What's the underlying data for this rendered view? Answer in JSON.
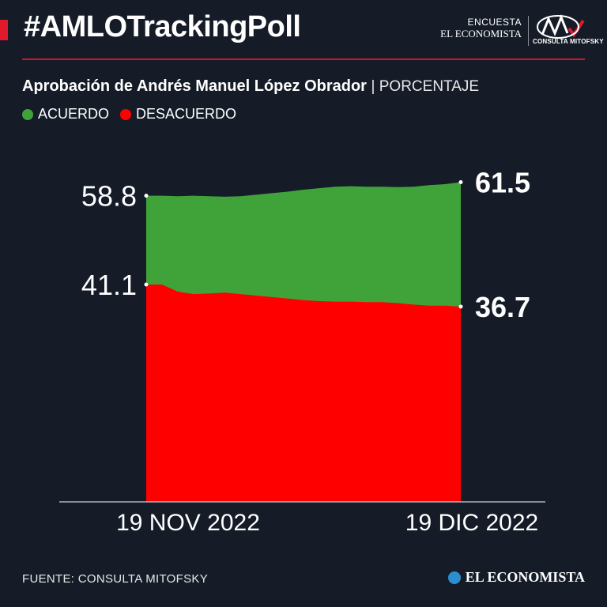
{
  "header": {
    "hashtag": "#AMLOTrackingPoll",
    "brand_line1": "ENCUESTA",
    "brand_line2": "EL ECONOMISTA",
    "mitofsky_label": "CONSULTA MITOFSKY"
  },
  "subtitle": {
    "main": "Aprobación de Andrés Manuel López Obrador",
    "unit": "| PORCENTAJE"
  },
  "legend": [
    {
      "label": "ACUERDO",
      "color": "#3fa33a"
    },
    {
      "label": "DESACUERDO",
      "color": "#ff0000"
    }
  ],
  "footer": {
    "source": "FUENTE: CONSULTA MITOFSKY",
    "brand": "EL ECONOMISTA"
  },
  "chart_data": {
    "type": "area",
    "stacked_overlap": true,
    "x_labels": [
      "19 NOV 2022",
      "19 DIC 2022"
    ],
    "ylim": [
      0,
      70
    ],
    "grid": false,
    "legend_position": "top-left",
    "series": [
      {
        "name": "ACUERDO",
        "color": "#3fa33a",
        "values": [
          58.8,
          58.8,
          58.7,
          58.8,
          58.7,
          58.6,
          58.7,
          59.0,
          59.3,
          59.6,
          60.0,
          60.3,
          60.6,
          60.7,
          60.6,
          60.6,
          60.5,
          60.6,
          60.9,
          61.1,
          61.5
        ],
        "start_label": "58.8",
        "end_label": "61.5"
      },
      {
        "name": "DESACUERDO",
        "color": "#ff0000",
        "values": [
          41.1,
          41.1,
          39.7,
          39.2,
          39.3,
          39.5,
          39.2,
          38.9,
          38.6,
          38.3,
          38.0,
          37.8,
          37.7,
          37.7,
          37.6,
          37.6,
          37.4,
          37.1,
          36.9,
          36.9,
          36.7
        ],
        "start_label": "41.1",
        "end_label": "36.7"
      }
    ]
  }
}
